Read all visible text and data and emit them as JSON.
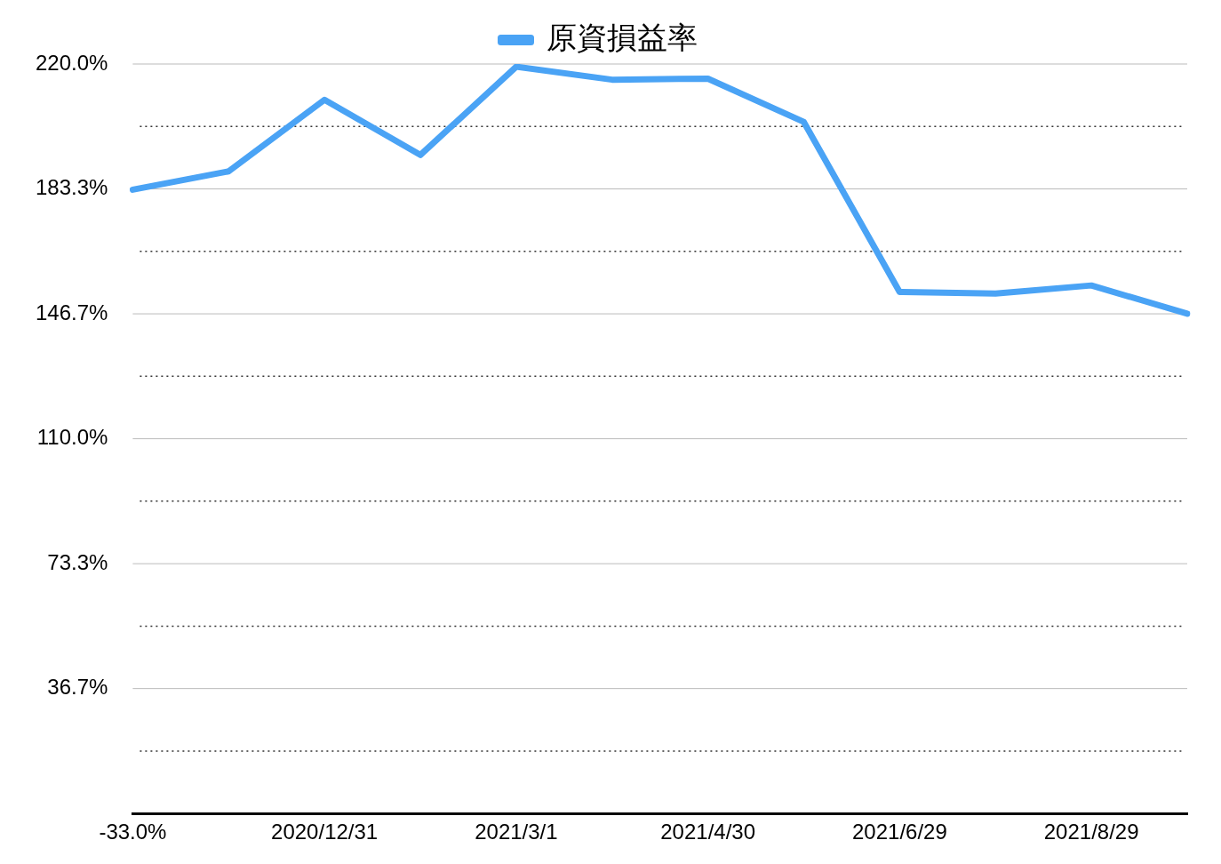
{
  "chart_data": {
    "type": "line",
    "categories": [
      "-33.0%",
      null,
      "2020/12/31",
      null,
      "2021/3/1",
      null,
      "2021/4/30",
      null,
      "2021/6/29",
      null,
      "2021/8/29",
      null
    ],
    "series": [
      {
        "name": "原資損益率",
        "color": "#4aa3f5",
        "values": [
          183.1,
          188.5,
          209.5,
          193.3,
          219.2,
          215.4,
          215.7,
          203.0,
          153.1,
          152.6,
          155.0,
          146.7
        ]
      }
    ],
    "ylim": [
      0,
      220
    ],
    "yticks": [
      {
        "value": 18.33,
        "label": null
      },
      {
        "value": 36.67,
        "label": "36.7%"
      },
      {
        "value": 55,
        "label": null
      },
      {
        "value": 73.33,
        "label": "73.3%"
      },
      {
        "value": 91.67,
        "label": null
      },
      {
        "value": 110,
        "label": "110.0%"
      },
      {
        "value": 128.33,
        "label": null
      },
      {
        "value": 146.67,
        "label": "146.7%"
      },
      {
        "value": 165,
        "label": null
      },
      {
        "value": 183.33,
        "label": "183.3%"
      },
      {
        "value": 201.67,
        "label": null
      },
      {
        "value": 220,
        "label": "220.0%"
      }
    ],
    "grid": "y",
    "legend": "top",
    "marker": "none",
    "line_style": "solid"
  }
}
